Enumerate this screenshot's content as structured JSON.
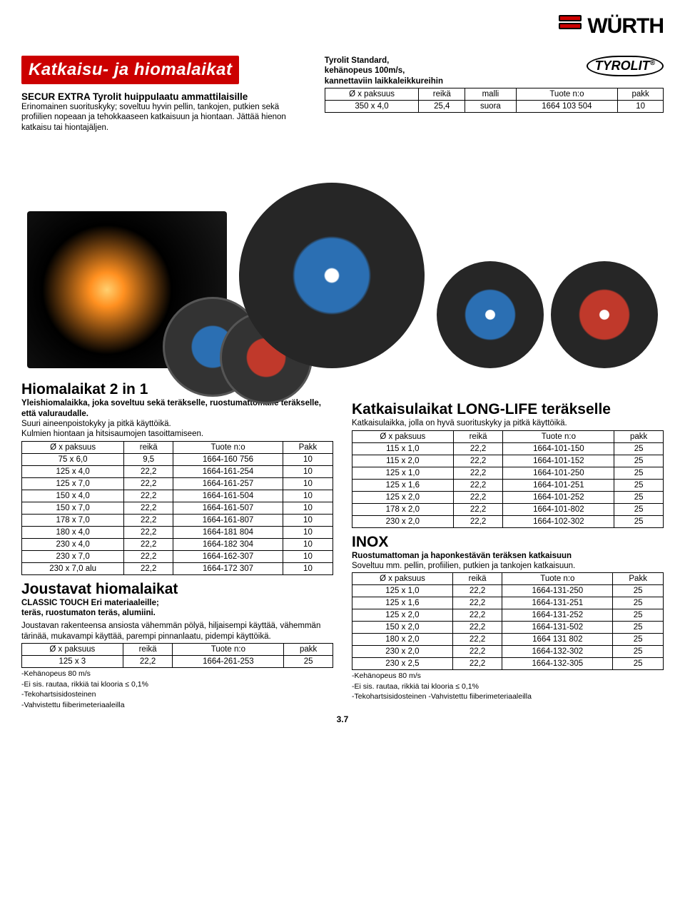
{
  "brand": {
    "name": "WÜRTH"
  },
  "header": {
    "title": "Katkaisu- ja hiomalaikat",
    "sub": "SECUR EXTRA Tyrolit huippulaatu ammattilaisille",
    "body": "Erinomainen suorituskyky; soveltuu hyvin pellin, tankojen, putkien sekä profiilien nopeaan ja tehokkaaseen katkaisuun ja hiontaan. Jättää hienon katkaisu tai hiontajäljen."
  },
  "top_right": {
    "brand": "TYROLIT",
    "heading1": "Tyrolit Standard,",
    "heading2": "kehänopeus 100m/s,",
    "heading3": "kannettaviin laikkaleikkureihin",
    "table": {
      "headers": [
        "Ø x paksuus",
        "reikä",
        "malli",
        "Tuote n:o",
        "pakk"
      ],
      "rows": [
        [
          "350 x 4,0",
          "25,4",
          "suora",
          "1664 103 504",
          "10"
        ]
      ]
    }
  },
  "hiomalaikat": {
    "title": "Hiomalaikat  2 in 1",
    "sub1": "Yleishiomalaikka, joka soveltuu sekä teräkselle, ruostumattomalle teräkselle, että valuraudalle.",
    "sub2": "Suuri aineenpoistokyky ja pitkä käyttöikä.",
    "sub3": "Kulmien hiontaan ja hitsisaumojen tasoittamiseen.",
    "headers": [
      "Ø x paksuus",
      "reikä",
      "Tuote n:o",
      "Pakk"
    ],
    "rows": [
      [
        "75 x 6,0",
        "9,5",
        "1664-160 756",
        "10"
      ],
      [
        "125 x 4,0",
        "22,2",
        "1664-161-254",
        "10"
      ],
      [
        "125 x 7,0",
        "22,2",
        "1664-161-257",
        "10"
      ],
      [
        "150 x 4,0",
        "22,2",
        "1664-161-504",
        "10"
      ],
      [
        "150 x 7,0",
        "22,2",
        "1664-161-507",
        "10"
      ],
      [
        "178 x 7,0",
        "22,2",
        "1664-161-807",
        "10"
      ],
      [
        "180 x 4,0",
        "22,2",
        "1664-181 804",
        "10"
      ],
      [
        "230 x 4,0",
        "22,2",
        "1664-182 304",
        "10"
      ],
      [
        "230 x 7,0",
        "22,2",
        "1664-162-307",
        "10"
      ],
      [
        "230 x 7,0 alu",
        "22,2",
        "1664-172 307",
        "10"
      ]
    ]
  },
  "joustavat": {
    "title": "Joustavat hiomalaikat",
    "sub1": "CLASSIC TOUCH Eri materiaaleille;",
    "sub2": "teräs, ruostumaton teräs, alumiini.",
    "body": "Joustavan rakenteensa ansiosta vähemmän pölyä, hiljaisempi käyttää, vähemmän tärinää, mukavampi käyttää, parempi pinnanlaatu, pidempi käyttöikä.",
    "headers": [
      "Ø x paksuus",
      "reikä",
      "Tuote n:o",
      "pakk"
    ],
    "rows": [
      [
        "125 x 3",
        "22,2",
        "1664-261-253",
        "25"
      ]
    ],
    "foot1": "-Kehänopeus 80 m/s",
    "foot2": "-Ei sis. rautaa, rikkiä tai klooria ≤ 0,1%",
    "foot3": "-Tekohartsisidosteinen",
    "foot4": "-Vahvistettu fiiberimeteriaaleilla"
  },
  "longlife": {
    "title": "Katkaisulaikat LONG-LIFE teräkselle",
    "sub": "Katkaisulaikka, jolla on hyvä suorituskyky ja pitkä käyttöikä.",
    "headers": [
      "Ø x paksuus",
      "reikä",
      "Tuote n:o",
      "pakk"
    ],
    "rows": [
      [
        "115 x 1,0",
        "22,2",
        "1664-101-150",
        "25"
      ],
      [
        "115 x 2,0",
        "22,2",
        "1664-101-152",
        "25"
      ],
      [
        "125 x 1,0",
        "22,2",
        "1664-101-250",
        "25"
      ],
      [
        "125 x 1,6",
        "22,2",
        "1664-101-251",
        "25"
      ],
      [
        "125 x 2,0",
        "22,2",
        "1664-101-252",
        "25"
      ],
      [
        "178 x 2,0",
        "22,2",
        "1664-101-802",
        "25"
      ],
      [
        "230 x 2,0",
        "22,2",
        "1664-102-302",
        "25"
      ]
    ]
  },
  "inox": {
    "title": "INOX",
    "sub1": "Ruostumattoman ja haponkestävän teräksen katkaisuun",
    "sub2": "Soveltuu mm. pellin, profiilien, putkien ja tankojen katkaisuun.",
    "headers": [
      "Ø x paksuus",
      "reikä",
      "Tuote n:o",
      "Pakk"
    ],
    "rows": [
      [
        "125 x 1,0",
        "22,2",
        "1664-131-250",
        "25"
      ],
      [
        "125 x 1,6",
        "22,2",
        "1664-131-251",
        "25"
      ],
      [
        "125 x 2,0",
        "22,2",
        "1664-131-252",
        "25"
      ],
      [
        "150 x 2,0",
        "22,2",
        "1664-131-502",
        "25"
      ],
      [
        "180 x 2,0",
        "22,2",
        "1664 131 802",
        "25"
      ],
      [
        "230 x 2,0",
        "22,2",
        "1664-132-302",
        "25"
      ],
      [
        "230 x 2,5",
        "22,2",
        "1664-132-305",
        "25"
      ]
    ],
    "foot1": "-Kehänopeus 80 m/s",
    "foot2": "-Ei sis. rautaa, rikkiä tai klooria ≤ 0,1%",
    "foot3": "-Tekohartsisidosteinen  -Vahvistettu fiiberimeteriaaleilla"
  },
  "page_number": "3.7",
  "colors": {
    "red": "#c00",
    "disc_dark": "#262626",
    "disc_blue": "#2b6fb3",
    "disc_red": "#c0392b"
  }
}
